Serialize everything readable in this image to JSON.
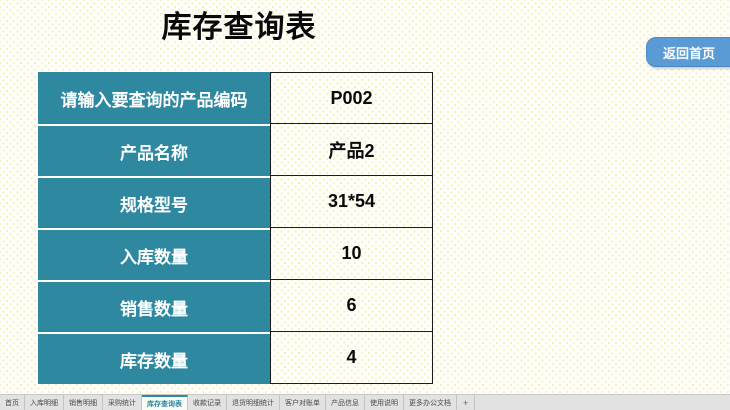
{
  "page": {
    "title": "库存查询表"
  },
  "toolbar": {
    "back_button_label": "返回首页"
  },
  "colors": {
    "header_teal": "#2e88a0",
    "button_blue": "#5b9bd5",
    "active_tab_text": "#2e88a0",
    "background_dot": "#f5f1bd"
  },
  "table": {
    "rows": [
      {
        "label": "请输入要查询的产品编码",
        "value": "P002"
      },
      {
        "label": "产品名称",
        "value": "产品2"
      },
      {
        "label": "规格型号",
        "value": "31*54"
      },
      {
        "label": "入库数量",
        "value": "10"
      },
      {
        "label": "销售数量",
        "value": "6"
      },
      {
        "label": "库存数量",
        "value": "4"
      }
    ]
  },
  "sheet_bar": {
    "active_tab": "库存查询表",
    "tabs": [
      {
        "label": "首页"
      },
      {
        "label": "入库明细"
      },
      {
        "label": "销售明细"
      },
      {
        "label": "采购统计"
      },
      {
        "label": "库存查询表"
      },
      {
        "label": "收款记录"
      },
      {
        "label": "退货明细统计"
      },
      {
        "label": "客户对账单"
      },
      {
        "label": "产品信息"
      },
      {
        "label": "使用说明"
      },
      {
        "label": "更多办公文档"
      }
    ],
    "add_tab_label": "+"
  }
}
